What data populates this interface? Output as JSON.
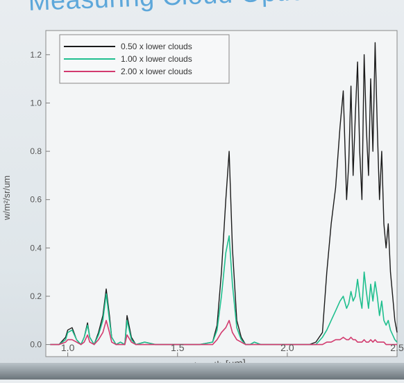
{
  "title": "Measuring Cloud Optical",
  "colors": {
    "series_0": "#1a1a1a",
    "series_1": "#1fbf8e",
    "series_2": "#d23a6e",
    "axis": "#7a7a7a",
    "background": "#f3f5f6"
  },
  "chart_data": {
    "type": "line",
    "xlabel": "wavelength [um]",
    "ylabel": "w/m²/sr/um",
    "xlim": [
      0.9,
      2.5
    ],
    "ylim": [
      -0.05,
      1.3
    ],
    "xticks": [
      1.0,
      1.5,
      2.0,
      2.5
    ],
    "xtick_labels": [
      "1.0",
      "1.5",
      "2.0",
      "2.5"
    ],
    "yticks": [
      0.0,
      0.2,
      0.4,
      0.6,
      0.8,
      1.0,
      1.2
    ],
    "ytick_labels": [
      "0.0",
      "0.2",
      "0.4",
      "0.6",
      "0.8",
      "1.0",
      "1.2"
    ],
    "legend_position": "top-left",
    "grid": false,
    "series": [
      {
        "name": "0.50 x lower clouds",
        "x": [
          0.92,
          0.96,
          0.99,
          1.0,
          1.02,
          1.04,
          1.06,
          1.075,
          1.09,
          1.1,
          1.12,
          1.14,
          1.16,
          1.175,
          1.19,
          1.2,
          1.22,
          1.24,
          1.26,
          1.27,
          1.29,
          1.31,
          1.35,
          1.4,
          1.5,
          1.6,
          1.66,
          1.68,
          1.7,
          1.72,
          1.735,
          1.75,
          1.77,
          1.79,
          1.81,
          1.83,
          1.85,
          1.88,
          1.95,
          2.05,
          2.1,
          2.13,
          2.16,
          2.18,
          2.2,
          2.22,
          2.24,
          2.255,
          2.27,
          2.28,
          2.29,
          2.3,
          2.31,
          2.32,
          2.33,
          2.34,
          2.35,
          2.36,
          2.37,
          2.38,
          2.39,
          2.4,
          2.41,
          2.42,
          2.43,
          2.44,
          2.45,
          2.46,
          2.47,
          2.48,
          2.49,
          2.5
        ],
        "y": [
          0.0,
          0.0,
          0.03,
          0.06,
          0.07,
          0.02,
          0.0,
          0.03,
          0.09,
          0.03,
          0.0,
          0.05,
          0.12,
          0.23,
          0.12,
          0.03,
          0.0,
          0.01,
          0.0,
          0.12,
          0.03,
          0.0,
          0.01,
          0.0,
          0.0,
          0.0,
          0.01,
          0.08,
          0.3,
          0.6,
          0.8,
          0.4,
          0.1,
          0.03,
          0.0,
          0.0,
          0.01,
          0.0,
          0.0,
          0.0,
          0.0,
          0.01,
          0.05,
          0.3,
          0.5,
          0.65,
          0.9,
          1.05,
          0.6,
          0.75,
          1.07,
          0.7,
          0.95,
          1.17,
          0.8,
          0.6,
          1.2,
          0.9,
          0.7,
          1.1,
          0.8,
          1.25,
          0.9,
          0.6,
          0.8,
          0.5,
          0.4,
          0.5,
          0.3,
          0.2,
          0.1,
          0.05
        ]
      },
      {
        "name": "1.00 x lower clouds",
        "x": [
          0.92,
          0.96,
          0.99,
          1.0,
          1.02,
          1.04,
          1.06,
          1.075,
          1.09,
          1.1,
          1.12,
          1.14,
          1.16,
          1.175,
          1.19,
          1.2,
          1.22,
          1.24,
          1.26,
          1.27,
          1.29,
          1.31,
          1.35,
          1.4,
          1.5,
          1.6,
          1.66,
          1.68,
          1.7,
          1.72,
          1.735,
          1.75,
          1.77,
          1.79,
          1.81,
          1.83,
          1.85,
          1.88,
          1.95,
          2.05,
          2.1,
          2.13,
          2.16,
          2.18,
          2.2,
          2.22,
          2.24,
          2.255,
          2.27,
          2.28,
          2.29,
          2.3,
          2.31,
          2.32,
          2.33,
          2.34,
          2.35,
          2.36,
          2.37,
          2.38,
          2.39,
          2.4,
          2.41,
          2.42,
          2.43,
          2.44,
          2.45,
          2.46,
          2.47,
          2.48,
          2.49,
          2.5
        ],
        "y": [
          0.0,
          0.0,
          0.02,
          0.05,
          0.06,
          0.02,
          0.0,
          0.03,
          0.08,
          0.03,
          0.0,
          0.04,
          0.1,
          0.21,
          0.1,
          0.03,
          0.0,
          0.01,
          0.0,
          0.1,
          0.02,
          0.0,
          0.01,
          0.0,
          0.0,
          0.0,
          0.01,
          0.06,
          0.2,
          0.38,
          0.45,
          0.25,
          0.07,
          0.02,
          0.0,
          0.0,
          0.01,
          0.0,
          0.0,
          0.0,
          0.0,
          0.0,
          0.03,
          0.06,
          0.1,
          0.14,
          0.18,
          0.2,
          0.15,
          0.17,
          0.22,
          0.18,
          0.2,
          0.27,
          0.2,
          0.15,
          0.3,
          0.22,
          0.15,
          0.25,
          0.18,
          0.26,
          0.2,
          0.12,
          0.18,
          0.1,
          0.08,
          0.1,
          0.06,
          0.04,
          0.02,
          0.01
        ]
      },
      {
        "name": "2.00 x lower clouds",
        "x": [
          0.92,
          0.96,
          0.99,
          1.0,
          1.02,
          1.04,
          1.06,
          1.075,
          1.09,
          1.1,
          1.12,
          1.14,
          1.16,
          1.175,
          1.19,
          1.2,
          1.22,
          1.24,
          1.26,
          1.27,
          1.29,
          1.31,
          1.35,
          1.4,
          1.5,
          1.6,
          1.66,
          1.68,
          1.7,
          1.72,
          1.735,
          1.75,
          1.77,
          1.79,
          1.81,
          1.83,
          1.85,
          1.88,
          1.95,
          2.05,
          2.1,
          2.13,
          2.16,
          2.18,
          2.2,
          2.22,
          2.24,
          2.255,
          2.27,
          2.28,
          2.29,
          2.3,
          2.31,
          2.32,
          2.33,
          2.34,
          2.35,
          2.36,
          2.37,
          2.38,
          2.39,
          2.4,
          2.41,
          2.42,
          2.43,
          2.44,
          2.45,
          2.46,
          2.47,
          2.48,
          2.49,
          2.5
        ],
        "y": [
          0.0,
          0.0,
          0.01,
          0.02,
          0.02,
          0.01,
          0.0,
          0.01,
          0.04,
          0.01,
          0.0,
          0.02,
          0.05,
          0.1,
          0.05,
          0.01,
          0.0,
          0.0,
          0.0,
          0.04,
          0.01,
          0.0,
          0.0,
          0.0,
          0.0,
          0.0,
          0.0,
          0.02,
          0.05,
          0.07,
          0.1,
          0.05,
          0.02,
          0.01,
          0.0,
          0.0,
          0.0,
          0.0,
          0.0,
          0.0,
          0.0,
          0.0,
          0.0,
          0.01,
          0.01,
          0.02,
          0.02,
          0.03,
          0.02,
          0.02,
          0.03,
          0.02,
          0.02,
          0.01,
          0.01,
          0.01,
          0.02,
          0.01,
          0.01,
          0.02,
          0.01,
          0.02,
          0.01,
          0.01,
          0.01,
          0.01,
          0.0,
          0.0,
          0.0,
          0.0,
          0.0,
          0.0
        ]
      }
    ]
  }
}
